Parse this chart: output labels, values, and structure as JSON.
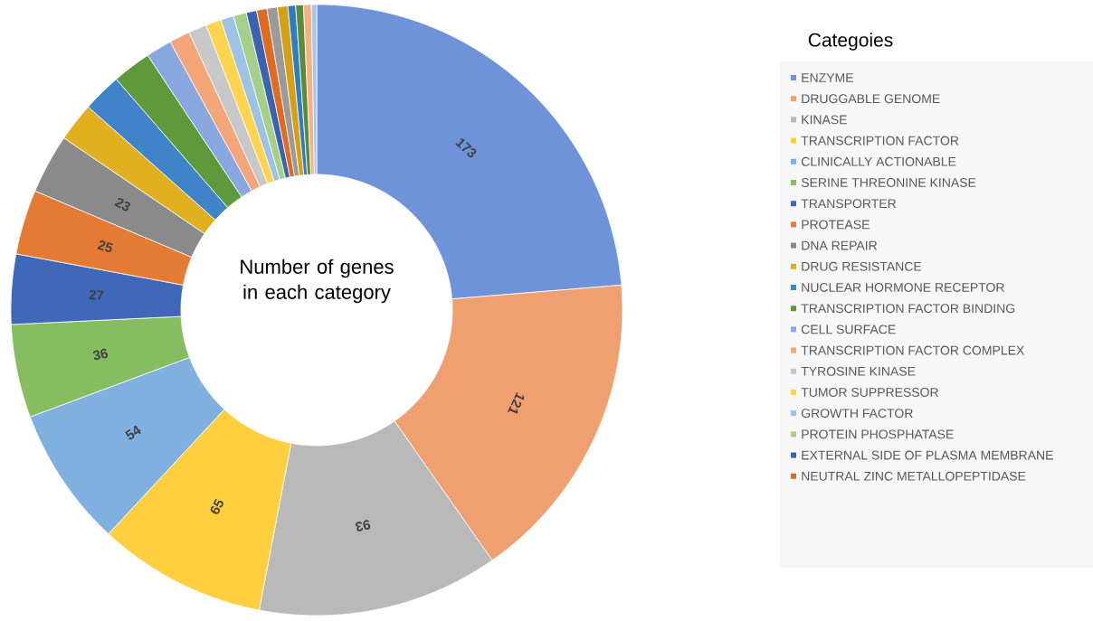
{
  "chart_data": {
    "type": "donut",
    "legend_title": "Categoies",
    "annotations": [
      "Number of genes in each category"
    ],
    "legend": "right",
    "categories": [
      "ENZYME",
      "DRUGGABLE GENOME",
      "KINASE",
      "TRANSCRIPTION FACTOR",
      "CLINICALLY ACTIONABLE",
      "SERINE THREONINE KINASE",
      "TRANSPORTER",
      "PROTEASE",
      "DNA REPAIR",
      "DRUG RESISTANCE",
      "NUCLEAR HORMONE RECEPTOR",
      "TRANSCRIPTION FACTOR BINDING",
      "CELL SURFACE",
      "TRANSCRIPTION FACTOR COMPLEX",
      "TYROSINE KINASE",
      "TUMOR SUPPRESSOR",
      "GROWTH FACTOR",
      "PROTEIN PHOSPHATASE",
      "EXTERNAL SIDE OF PLASMA MEMBRANE",
      "NEUTRAL ZINC METALLOPEPTIDASE",
      null,
      null,
      null,
      null,
      null,
      null
    ],
    "values": [
      173,
      121,
      93,
      65,
      54,
      36,
      27,
      25,
      23,
      15,
      15,
      15,
      10,
      8,
      7,
      6,
      5,
      5,
      4,
      4,
      4,
      4,
      3,
      3,
      3,
      2
    ],
    "value_labels": [
      "173",
      "121",
      "93",
      "65",
      "54",
      "36",
      "27",
      "25",
      "23",
      null,
      null,
      null,
      null,
      null,
      null,
      null,
      null,
      null,
      null,
      null,
      null,
      null,
      null,
      null,
      null,
      null
    ],
    "colors": [
      "#6f93d8",
      "#f0a070",
      "#b9b9b9",
      "#ffcf40",
      "#7fb0e0",
      "#85bd60",
      "#3f68b8",
      "#e57a35",
      "#8a8a8a",
      "#e0b020",
      "#3f83c8",
      "#5e9a3c",
      "#8aa8e0",
      "#f4a57a",
      "#c8c8c8",
      "#ffd54f",
      "#9cc3e6",
      "#a6d08a",
      "#3a63b0",
      "#e06a20",
      "#9a9a9a",
      "#d4a017",
      "#2e7ebf",
      "#5a8a3a",
      "#f4b183",
      "#a9c4eb"
    ]
  }
}
